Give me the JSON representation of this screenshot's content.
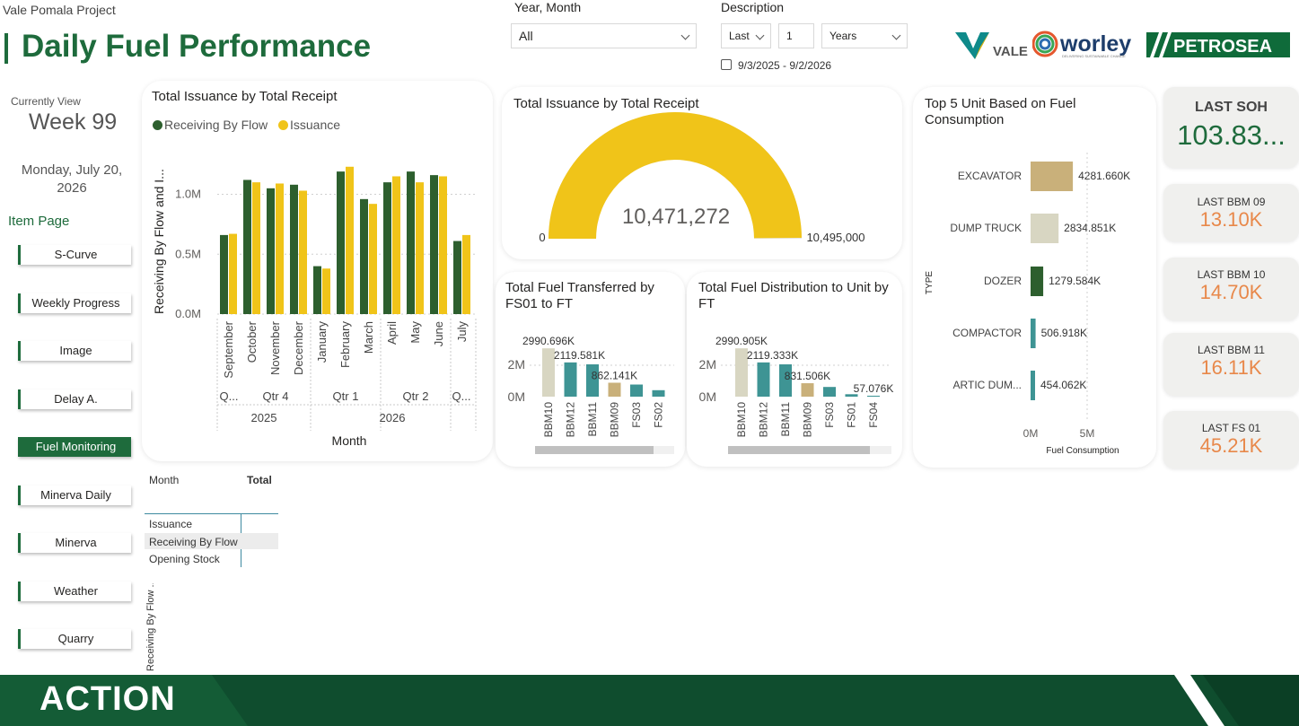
{
  "header": {
    "project": "Vale Pomala Project",
    "title": "Daily Fuel Performance",
    "brand_color": "#1e6b3c"
  },
  "filters": {
    "year_month_label": "Year, Month",
    "year_month_value": "All",
    "description_label": "Description",
    "relative": "Last",
    "count": "1",
    "unit": "Years",
    "date_range": "9/3/2025 - 9/2/2026"
  },
  "logos": {
    "vale": "VALE",
    "worley": "worley",
    "worley_sub": "DELIVERING SUSTAINABLE CHANGE",
    "petrosea": "PETROSEA"
  },
  "sidebar": {
    "current_label": "Currently View",
    "week": "Week 99",
    "date": "Monday, July 20, 2026",
    "item_page": "Item Page",
    "items": [
      {
        "label": "S-Curve",
        "active": false
      },
      {
        "label": "Weekly Progress",
        "active": false
      },
      {
        "label": "Image",
        "active": false
      },
      {
        "label": "Delay A.",
        "active": false
      },
      {
        "label": "Fuel Monitoring",
        "active": true
      },
      {
        "label": "Minerva Daily",
        "active": false
      },
      {
        "label": "Minerva",
        "active": false
      },
      {
        "label": "Weather",
        "active": false
      },
      {
        "label": "Quarry",
        "active": false
      }
    ]
  },
  "bar_chart": {
    "title": "Total Issuance by Total Receipt",
    "legend": [
      "Receiving By Flow",
      "Issuance"
    ],
    "colors": [
      "#2d5f2e",
      "#f0c419"
    ],
    "ylabel": "Receiving By Flow and I...",
    "xlabel": "Month",
    "yticks": [
      "0.0M",
      "0.5M",
      "1.0M"
    ],
    "months": [
      "September",
      "October",
      "November",
      "December",
      "January",
      "February",
      "March",
      "April",
      "May",
      "June",
      "July"
    ],
    "quarters": [
      "Q...",
      "Qtr 4",
      "Qtr 1",
      "Qtr 2",
      "Q..."
    ],
    "years": [
      "2025",
      "2026"
    ]
  },
  "gauge": {
    "title": "Total Issuance by Total Receipt",
    "value_label": "10,471,272",
    "min_label": "0",
    "max_label": "10,495,000",
    "color": "#f0c419"
  },
  "fs01": {
    "title": "Total Fuel Transferred by FS01 to FT",
    "yticks": [
      "2M",
      "0M"
    ],
    "labels": [
      "2990.696K",
      "2119.581K",
      "862.141K"
    ]
  },
  "dist": {
    "title": "Total Fuel Distribution to Unit by FT",
    "yticks": [
      "2M",
      "0M"
    ],
    "labels": [
      "2990.905K",
      "2119.333K",
      "831.506K",
      "57.076K"
    ]
  },
  "top5": {
    "title": "Top 5 Unit Based on Fuel Consumption",
    "ylabel": "TYPE",
    "xlabel": "Fuel Consumption",
    "xticks": [
      "0M",
      "5M"
    ],
    "labels": [
      "4281.660K",
      "2834.851K",
      "1279.584K",
      "506.918K",
      "454.062K"
    ]
  },
  "kpis": {
    "soh_label": "LAST SOH",
    "soh_value": "103.83...",
    "items": [
      {
        "label": "LAST BBM 09",
        "value": "13.10K"
      },
      {
        "label": "LAST BBM 10",
        "value": "14.70K"
      },
      {
        "label": "LAST BBM 11",
        "value": "16.11K"
      },
      {
        "label": "LAST FS 01",
        "value": "45.21K"
      }
    ]
  },
  "matrix": {
    "col_month": "Month",
    "col_total": "Total",
    "rows": [
      "Issuance",
      "Receiving By Flow",
      "Opening Stock"
    ],
    "axis_label": "Receiving By Flow ..."
  },
  "footer": {
    "logo": "ACTION",
    "bg": "#0f4d2e"
  },
  "chart_data": [
    {
      "type": "bar",
      "title": "Total Issuance by Total Receipt",
      "xlabel": "Month",
      "ylabel": "Receiving By Flow and I...",
      "categories": [
        "September",
        "October",
        "November",
        "December",
        "January",
        "February",
        "March",
        "April",
        "May",
        "June",
        "July"
      ],
      "series": [
        {
          "name": "Receiving By Flow",
          "values": [
            0.66,
            1.12,
            1.05,
            1.08,
            0.4,
            1.19,
            0.96,
            1.1,
            1.19,
            1.16,
            0.61
          ]
        },
        {
          "name": "Issuance",
          "values": [
            0.67,
            1.1,
            1.09,
            1.03,
            0.38,
            1.23,
            0.92,
            1.15,
            1.1,
            1.15,
            0.66
          ]
        }
      ],
      "ylim": [
        0,
        1.3
      ],
      "legend": "top-left",
      "grid": true
    },
    {
      "type": "bar",
      "title": "Total Fuel Transferred by FS01 to FT",
      "categories": [
        "BBM10",
        "BBM12",
        "BBM11",
        "BBM09",
        "FS03",
        "FS02"
      ],
      "values": [
        2990.696,
        2119.581,
        2000,
        862.141,
        750,
        400
      ],
      "colors": [
        "#d8d6c2",
        "#3e9494",
        "#3e9494",
        "#c9b07a",
        "#3e9494",
        "#3e9494"
      ],
      "ylim": [
        0,
        3200
      ]
    },
    {
      "type": "bar",
      "title": "Total Fuel Distribution to Unit by FT",
      "categories": [
        "BBM10",
        "BBM12",
        "BBM11",
        "BBM09",
        "FS03",
        "FS01",
        "FS04"
      ],
      "values": [
        2990.905,
        2119.333,
        2000,
        831.506,
        600,
        150,
        57.076
      ],
      "colors": [
        "#d8d6c2",
        "#3e9494",
        "#3e9494",
        "#c9b07a",
        "#3e9494",
        "#3e9494",
        "#3e9494"
      ],
      "ylim": [
        0,
        3200
      ]
    },
    {
      "type": "bar",
      "title": "Top 5 Unit Based on Fuel Consumption",
      "orientation": "horizontal",
      "categories": [
        "EXCAVATOR",
        "DUMP TRUCK",
        "DOZER",
        "COMPACTOR",
        "ARTIC DUM..."
      ],
      "values": [
        4281.66,
        2834.851,
        1279.584,
        506.918,
        454.062
      ],
      "colors": [
        "#c9b07a",
        "#d8d6c2",
        "#2d5f2e",
        "#3e9494",
        "#3e9494"
      ],
      "xlim": [
        0,
        8000
      ]
    }
  ]
}
